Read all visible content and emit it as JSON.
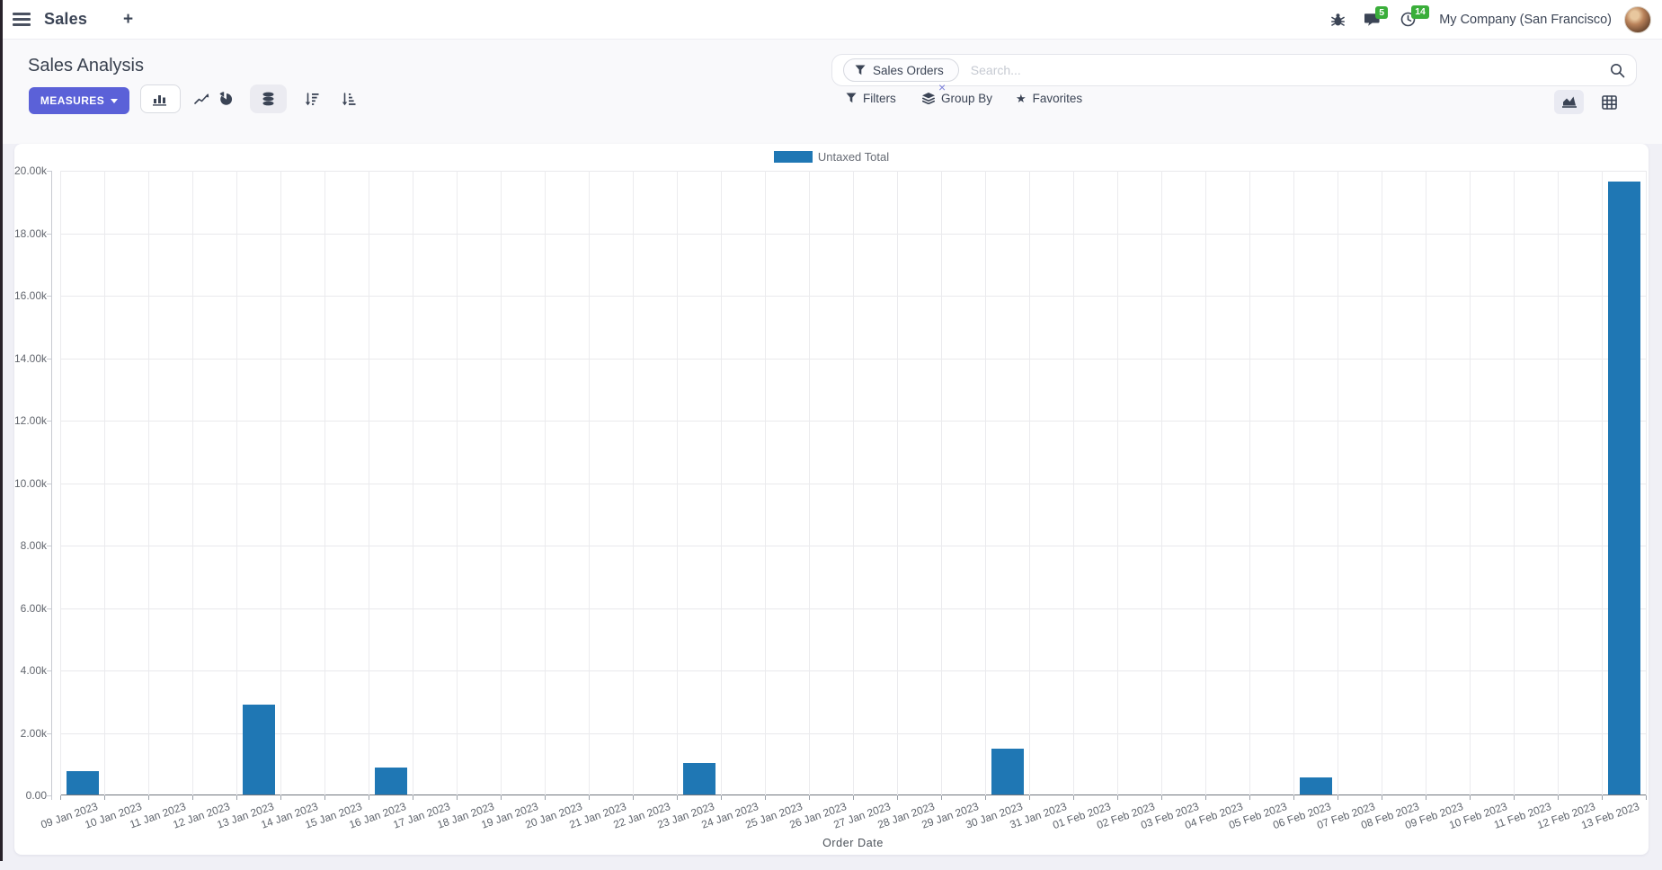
{
  "colors": {
    "accent": "#5B61D8",
    "bar_blue": "#1F77B4",
    "badge_green": "#3AAE3A",
    "text_slate": "#3B4455",
    "muted_gray": "#62666E",
    "panel_bg": "#F9F9FB",
    "page_bg": "#F0F0F6"
  },
  "navbar": {
    "app_name": "Sales",
    "plus_label": "+",
    "message_badge": "5",
    "activity_badge": "14",
    "company_name": "My Company (San Francisco)"
  },
  "control_panel": {
    "title": "Sales Analysis",
    "measures_label": "MEASURES",
    "search": {
      "facet_label": "Sales Orders",
      "facet_close": "×",
      "placeholder": "Search..."
    },
    "filters_label": "Filters",
    "group_by_label": "Group By",
    "favorites_label": "Favorites",
    "favorites_star": "★"
  },
  "icons": [
    "menu-icon",
    "bug-icon",
    "chat-icon",
    "clock-icon",
    "search-icon",
    "filter-icon",
    "layers-icon",
    "star-icon",
    "bar-chart-icon",
    "line-chart-icon",
    "pie-chart-icon",
    "stacked-icon",
    "sort-desc-icon",
    "sort-asc-icon",
    "area-chart-icon",
    "pivot-icon"
  ],
  "chart_data": {
    "type": "bar",
    "title": "",
    "legend": [
      "Untaxed Total"
    ],
    "legend_position": "top-center",
    "grid": true,
    "xlabel": "Order Date",
    "ylabel": "",
    "ylim": [
      0,
      20000
    ],
    "y_tick_step": 2000,
    "y_ticks": [
      "0.00",
      "2.00k",
      "4.00k",
      "6.00k",
      "8.00k",
      "10.00k",
      "12.00k",
      "14.00k",
      "16.00k",
      "18.00k",
      "20.00k"
    ],
    "categories": [
      "09 Jan 2023",
      "10 Jan 2023",
      "11 Jan 2023",
      "12 Jan 2023",
      "13 Jan 2023",
      "14 Jan 2023",
      "15 Jan 2023",
      "16 Jan 2023",
      "17 Jan 2023",
      "18 Jan 2023",
      "19 Jan 2023",
      "20 Jan 2023",
      "21 Jan 2023",
      "22 Jan 2023",
      "23 Jan 2023",
      "24 Jan 2023",
      "25 Jan 2023",
      "26 Jan 2023",
      "27 Jan 2023",
      "28 Jan 2023",
      "29 Jan 2023",
      "30 Jan 2023",
      "31 Jan 2023",
      "01 Feb 2023",
      "02 Feb 2023",
      "03 Feb 2023",
      "04 Feb 2023",
      "05 Feb 2023",
      "06 Feb 2023",
      "07 Feb 2023",
      "08 Feb 2023",
      "09 Feb 2023",
      "10 Feb 2023",
      "11 Feb 2023",
      "12 Feb 2023",
      "13 Feb 2023"
    ],
    "series": [
      {
        "name": "Untaxed Total",
        "color": "#1F77B4",
        "values": [
          750,
          0,
          0,
          0,
          2870,
          0,
          0,
          860,
          0,
          0,
          0,
          0,
          0,
          0,
          1020,
          0,
          0,
          0,
          0,
          0,
          0,
          1460,
          0,
          0,
          0,
          0,
          0,
          0,
          550,
          0,
          0,
          0,
          0,
          0,
          0,
          19640
        ]
      }
    ]
  }
}
